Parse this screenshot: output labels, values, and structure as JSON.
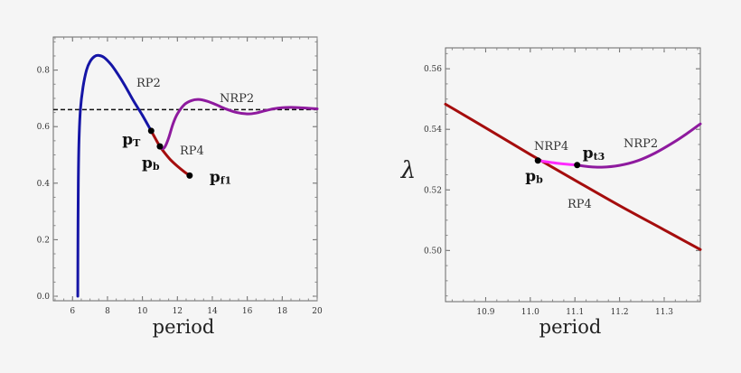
{
  "chart_data": [
    {
      "type": "line",
      "xlabel": "period",
      "ylabel": "",
      "xlim": [
        4.9,
        20.0
      ],
      "ylim": [
        -0.016,
        0.917
      ],
      "xticks": [
        "6",
        "8",
        "10",
        "12",
        "14",
        "16",
        "18",
        "20"
      ],
      "yticks": [
        "0.0",
        "0.2",
        "0.4",
        "0.6",
        "0.8"
      ],
      "grid": false,
      "reference_lines": [
        {
          "y": 0.66,
          "style": "dashed",
          "color": "#111111"
        }
      ],
      "series": [
        {
          "name": "RP2",
          "color": "#1515a6",
          "x": [
            6.3,
            6.31,
            6.33,
            6.37,
            6.45,
            6.6,
            6.8,
            7.0,
            7.25,
            7.5,
            7.8,
            8.2,
            8.6,
            9.0,
            9.5,
            10.0,
            10.5
          ],
          "y": [
            0.0,
            0.2,
            0.4,
            0.55,
            0.66,
            0.74,
            0.8,
            0.83,
            0.848,
            0.852,
            0.845,
            0.82,
            0.785,
            0.745,
            0.69,
            0.64,
            0.585
          ]
        },
        {
          "name": "RP4",
          "color": "#a50d0d",
          "x": [
            10.5,
            10.75,
            11.0,
            11.3,
            11.6,
            12.0,
            12.4,
            12.7
          ],
          "y": [
            0.585,
            0.557,
            0.53,
            0.505,
            0.483,
            0.46,
            0.44,
            0.427
          ]
        },
        {
          "name": "NRP2",
          "color": "#8e1a9e",
          "x": [
            11.0,
            11.15,
            11.3,
            11.5,
            11.75,
            12.0,
            12.4,
            12.8,
            13.2,
            13.7,
            14.2,
            14.8,
            15.4,
            16.0,
            16.5,
            17.0,
            17.5,
            18.0,
            18.5,
            19.0,
            19.5,
            20.0
          ],
          "y": [
            0.53,
            0.522,
            0.53,
            0.56,
            0.61,
            0.645,
            0.678,
            0.692,
            0.696,
            0.69,
            0.678,
            0.662,
            0.65,
            0.645,
            0.648,
            0.656,
            0.663,
            0.667,
            0.668,
            0.667,
            0.665,
            0.663
          ]
        }
      ],
      "points": [
        {
          "x": 10.5,
          "y": 0.585,
          "label": {
            "base": "p",
            "sub": "T"
          }
        },
        {
          "x": 11.0,
          "y": 0.53,
          "label": {
            "base": "p",
            "sub": "b"
          }
        },
        {
          "x": 12.7,
          "y": 0.427,
          "label": {
            "base": "p",
            "sub": "f1"
          }
        }
      ],
      "annotations": [
        "RP2",
        "NRP2",
        "RP4"
      ]
    },
    {
      "type": "line",
      "xlabel": "period",
      "ylabel": "λ",
      "xlim": [
        10.81,
        11.381
      ],
      "ylim": [
        0.4831,
        0.5669
      ],
      "xticks": [
        "10.9",
        "11.0",
        "11.1",
        "11.2",
        "11.3"
      ],
      "yticks": [
        "0.50",
        "0.52",
        "0.54",
        "0.56"
      ],
      "grid": false,
      "series": [
        {
          "name": "RP4",
          "color": "#a50d0d",
          "x": [
            10.81,
            10.9,
            11.0,
            11.1,
            11.2,
            11.3,
            11.381
          ],
          "y": [
            0.5483,
            0.5405,
            0.5317,
            0.5232,
            0.5148,
            0.5068,
            0.5003
          ]
        },
        {
          "name": "NRP4",
          "color": "#ff2bff",
          "x": [
            11.017,
            11.04,
            11.06,
            11.08,
            11.105
          ],
          "y": [
            0.5297,
            0.5292,
            0.5288,
            0.5285,
            0.5282
          ]
        },
        {
          "name": "NRP2",
          "color": "#8e1a9e",
          "x": [
            11.105,
            11.13,
            11.16,
            11.2,
            11.24,
            11.28,
            11.32,
            11.35,
            11.381
          ],
          "y": [
            0.5282,
            0.5277,
            0.5275,
            0.5281,
            0.5296,
            0.5322,
            0.5356,
            0.5385,
            0.5418
          ]
        }
      ],
      "points": [
        {
          "x": 11.017,
          "y": 0.5297,
          "label": {
            "base": "p",
            "sub": "b"
          }
        },
        {
          "x": 11.105,
          "y": 0.5282,
          "label": {
            "base": "p",
            "sub": "t3"
          }
        }
      ],
      "annotations": [
        "NRP4",
        "NRP2",
        "RP4"
      ]
    }
  ]
}
